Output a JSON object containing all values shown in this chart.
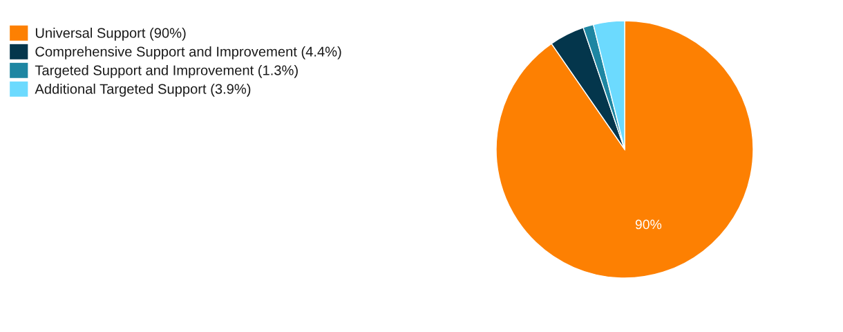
{
  "chart_data": {
    "type": "pie",
    "categories": [
      "Universal Support (90%)",
      "Comprehensive Support and Improvement (4.4%)",
      "Targeted Support and Improvement (1.3%)",
      "Additional Targeted Support (3.9%)"
    ],
    "values": [
      90,
      4.4,
      1.3,
      3.9
    ],
    "colors": [
      "#fd8002",
      "#04364c",
      "#1e86a2",
      "#6cdafe"
    ],
    "value_labels": [
      "90%",
      null,
      null,
      null
    ],
    "legend": "top left"
  }
}
